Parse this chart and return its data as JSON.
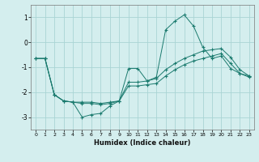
{
  "xlabel": "Humidex (Indice chaleur)",
  "background_color": "#d4eeee",
  "grid_color": "#aad4d4",
  "line_color": "#1a7a6e",
  "xlim": [
    -0.5,
    23.5
  ],
  "ylim": [
    -3.5,
    1.5
  ],
  "yticks": [
    -3,
    -2,
    -1,
    0,
    1
  ],
  "xticks": [
    0,
    1,
    2,
    3,
    4,
    5,
    6,
    7,
    8,
    9,
    10,
    11,
    12,
    13,
    14,
    15,
    16,
    17,
    18,
    19,
    20,
    21,
    22,
    23
  ],
  "series": [
    {
      "x": [
        0,
        1,
        2,
        3,
        4,
        5,
        6,
        7,
        8,
        9,
        10,
        11,
        12,
        13,
        14,
        15,
        16,
        17,
        18,
        19,
        20,
        21,
        22,
        23
      ],
      "y": [
        -0.65,
        -0.65,
        -2.1,
        -2.35,
        -2.4,
        -3.0,
        -2.9,
        -2.85,
        -2.55,
        -2.35,
        -1.05,
        -1.05,
        -1.55,
        -1.4,
        0.5,
        0.85,
        1.1,
        0.65,
        -0.2,
        -0.65,
        -0.55,
        -1.05,
        -1.25,
        -1.35
      ]
    },
    {
      "x": [
        0,
        1,
        2,
        3,
        4,
        5,
        6,
        7,
        8,
        9,
        10,
        11,
        12,
        13,
        14,
        15,
        16,
        17,
        18,
        19,
        20,
        21,
        22,
        23
      ],
      "y": [
        -0.65,
        -0.65,
        -2.1,
        -2.35,
        -2.4,
        -2.4,
        -2.4,
        -2.45,
        -2.4,
        -2.35,
        -1.6,
        -1.6,
        -1.55,
        -1.45,
        -1.1,
        -0.85,
        -0.65,
        -0.5,
        -0.35,
        -0.3,
        -0.25,
        -0.6,
        -1.1,
        -1.35
      ]
    },
    {
      "x": [
        0,
        1,
        2,
        3,
        4,
        5,
        6,
        7,
        8,
        9,
        10,
        11,
        12,
        13,
        14,
        15,
        16,
        17,
        18,
        19,
        20,
        21,
        22,
        23
      ],
      "y": [
        -0.65,
        -0.65,
        -2.1,
        -2.35,
        -2.4,
        -2.45,
        -2.45,
        -2.5,
        -2.45,
        -2.35,
        -1.75,
        -1.75,
        -1.7,
        -1.65,
        -1.35,
        -1.1,
        -0.9,
        -0.75,
        -0.65,
        -0.55,
        -0.45,
        -0.85,
        -1.25,
        -1.4
      ]
    }
  ]
}
